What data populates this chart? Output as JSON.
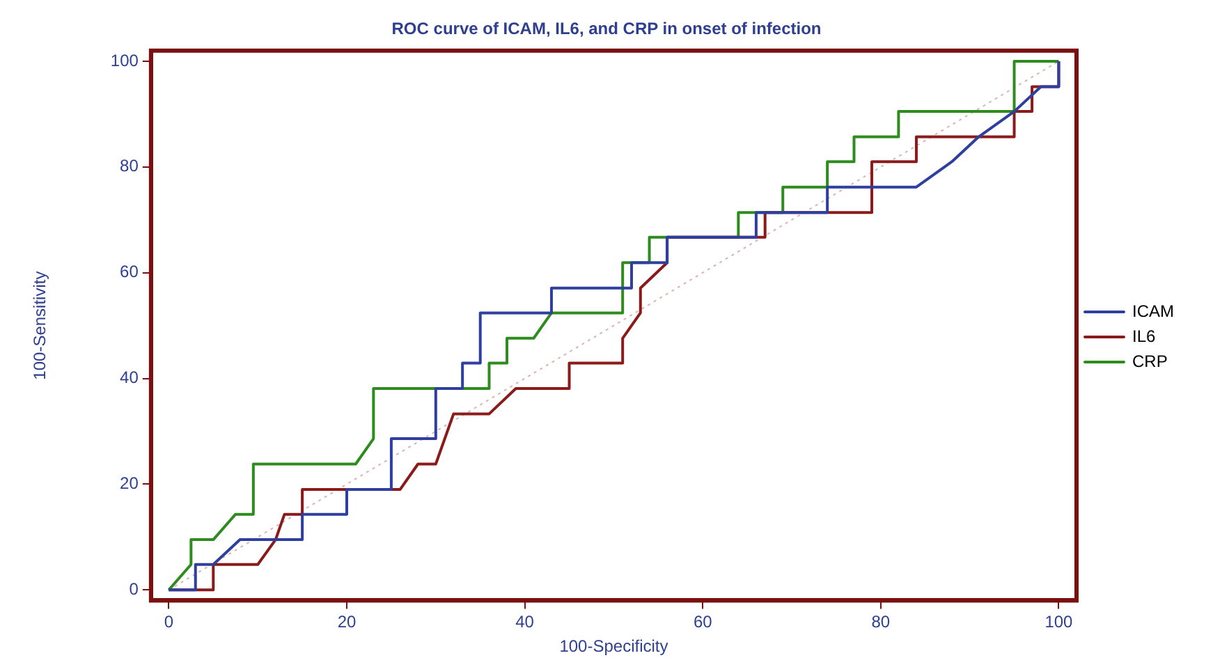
{
  "chart_data": {
    "type": "line",
    "title": "ROC curve of ICAM, IL6, and CRP in onset of infection",
    "xlabel": "100-Specificity",
    "ylabel": "100-Sensitivity",
    "xlim": [
      -2,
      102
    ],
    "ylim": [
      -2,
      102
    ],
    "xticks": [
      0,
      20,
      40,
      60,
      80,
      100
    ],
    "yticks": [
      0,
      20,
      40,
      60,
      80,
      100
    ],
    "grid": false,
    "legend": "right",
    "marker": "none",
    "line_style": "solid",
    "series": [
      {
        "name": "ICAM",
        "color": "#2f3fa0",
        "x": [
          0,
          3,
          3,
          5,
          8,
          15,
          15,
          20,
          20,
          25,
          25,
          30,
          30,
          33,
          33,
          35,
          35,
          43,
          43,
          52,
          52,
          56,
          56,
          66,
          66,
          74,
          74,
          84,
          88,
          91,
          95,
          98,
          100,
          100
        ],
        "values": [
          0,
          0,
          4.8,
          4.8,
          9.5,
          9.5,
          14.3,
          14.3,
          19,
          19,
          28.6,
          28.6,
          38.1,
          38.1,
          42.9,
          42.9,
          52.4,
          52.4,
          57.1,
          57.1,
          61.9,
          61.9,
          66.7,
          66.7,
          71.4,
          71.4,
          76.2,
          76.2,
          81,
          85.7,
          90.5,
          95.2,
          95.2,
          100
        ]
      },
      {
        "name": "IL6",
        "color": "#8b1a1a",
        "x": [
          0,
          5,
          5,
          10,
          12,
          13,
          15,
          15,
          26,
          28,
          30,
          32,
          36,
          39,
          45,
          45,
          51,
          51,
          53,
          53,
          56,
          56,
          67,
          67,
          79,
          79,
          84,
          84,
          95,
          95,
          97,
          97,
          100,
          100
        ],
        "values": [
          0,
          0,
          4.8,
          4.8,
          9.5,
          14.3,
          14.3,
          19,
          19,
          23.8,
          23.8,
          33.3,
          33.3,
          38.1,
          38.1,
          42.9,
          42.9,
          47.6,
          52.4,
          57.1,
          61.9,
          66.7,
          66.7,
          71.4,
          71.4,
          81,
          81,
          85.7,
          85.7,
          90.5,
          90.5,
          95.2,
          95.2,
          100
        ]
      },
      {
        "name": "CRP",
        "color": "#2e8b1e",
        "x": [
          0,
          2.5,
          2.5,
          5,
          7.5,
          9.5,
          9.5,
          21,
          23,
          23,
          36,
          36,
          38,
          38,
          41,
          43,
          51,
          51,
          54,
          54,
          64,
          64,
          69,
          69,
          74,
          74,
          77,
          77,
          82,
          82,
          95,
          95,
          100
        ],
        "values": [
          0,
          4.8,
          9.5,
          9.5,
          14.3,
          14.3,
          23.8,
          23.8,
          28.6,
          38.1,
          38.1,
          42.9,
          42.9,
          47.6,
          47.6,
          52.4,
          52.4,
          61.9,
          61.9,
          66.7,
          66.7,
          71.4,
          71.4,
          76.2,
          76.2,
          81,
          81,
          85.7,
          85.7,
          90.5,
          90.5,
          100,
          100
        ]
      },
      {
        "color": "#d8b4b4",
        "line_style": "dotted",
        "x": [
          0,
          100
        ],
        "values": [
          0,
          100
        ]
      }
    ]
  }
}
